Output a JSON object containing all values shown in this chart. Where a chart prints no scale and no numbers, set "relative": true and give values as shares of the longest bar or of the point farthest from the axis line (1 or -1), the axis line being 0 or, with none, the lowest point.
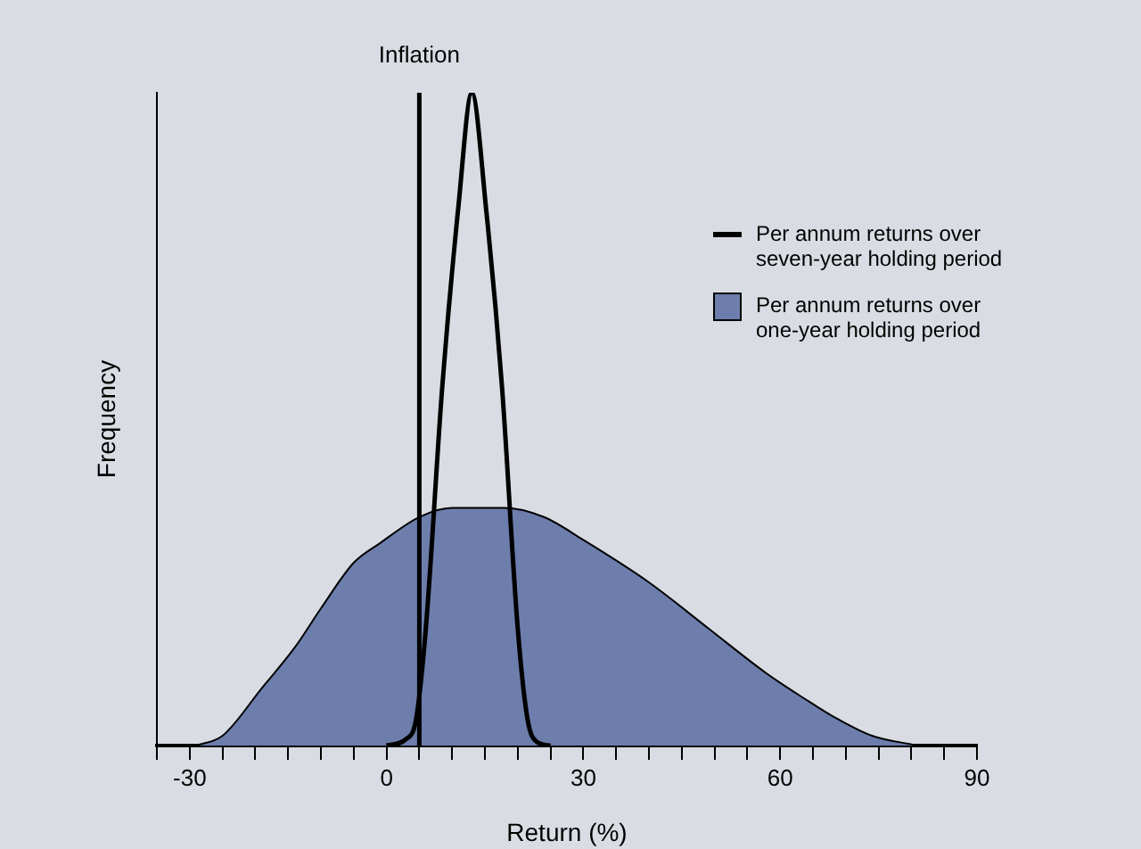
{
  "chart_data": {
    "type": "line",
    "xlabel": "Return (%)",
    "ylabel": "Frequency",
    "relative": true,
    "legend": "top right",
    "marker": "none",
    "xlim": [
      -35,
      90
    ],
    "xticks": [
      {
        "value": -35,
        "label": null
      },
      -30,
      {
        "value": -25,
        "label": null
      },
      {
        "value": -20,
        "label": null
      },
      {
        "value": -15,
        "label": null
      },
      {
        "value": -10,
        "label": null
      },
      {
        "value": -5,
        "label": null
      },
      0,
      {
        "value": 5,
        "label": null
      },
      {
        "value": 10,
        "label": null
      },
      {
        "value": 15,
        "label": null
      },
      {
        "value": 20,
        "label": null
      },
      {
        "value": 25,
        "label": null
      },
      30,
      {
        "value": 35,
        "label": null
      },
      {
        "value": 40,
        "label": null
      },
      {
        "value": 45,
        "label": null
      },
      {
        "value": 50,
        "label": null
      },
      {
        "value": 55,
        "label": null
      },
      60,
      {
        "value": 65,
        "label": null
      },
      {
        "value": 70,
        "label": null
      },
      {
        "value": 75,
        "label": null
      },
      {
        "value": 80,
        "label": null
      },
      {
        "value": 85,
        "label": null
      },
      90
    ],
    "ref_lines": [
      {
        "axis": "x",
        "value": 5,
        "label": "Inflation",
        "color": "#000000"
      }
    ],
    "series": [
      {
        "name": "Per annum returns over one-year holding period",
        "type": "area",
        "color": "#6d7eac",
        "x": [
          -29,
          -25,
          -19,
          -14,
          -10,
          -5,
          -1,
          5,
          10,
          18,
          24,
          30,
          40,
          49,
          58,
          64,
          68,
          74,
          81
        ],
        "values": [
          0,
          0.015,
          0.088,
          0.15,
          0.21,
          0.28,
          0.31,
          0.35,
          0.364,
          0.364,
          0.35,
          0.315,
          0.25,
          0.18,
          0.11,
          0.07,
          0.045,
          0.015,
          0
        ]
      },
      {
        "name": "Per annum returns over seven-year holding period",
        "color": "#000000",
        "x": [
          0,
          3,
          4.5,
          6,
          8.5,
          11,
          13,
          15.2,
          17.6,
          20,
          21.5,
          23,
          25
        ],
        "values": [
          0,
          0.01,
          0.04,
          0.18,
          0.55,
          0.83,
          1,
          0.82,
          0.55,
          0.18,
          0.04,
          0.005,
          0
        ]
      }
    ]
  }
}
